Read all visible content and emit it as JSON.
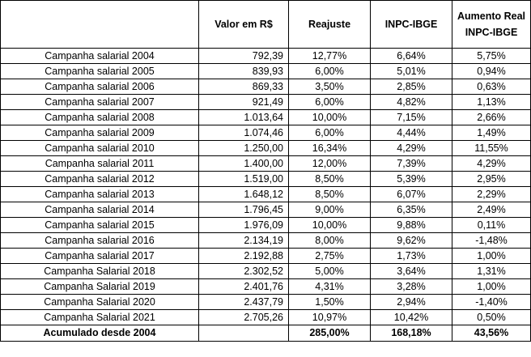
{
  "headers": {
    "label": "",
    "valor": "Valor em R$",
    "reajuste": "Reajuste",
    "inpc": "INPC-IBGE",
    "aumento_line1": "Aumento Real",
    "aumento_line2": "INPC-IBGE"
  },
  "rows": [
    {
      "label": "Campanha salarial 2004",
      "valor": "792,39",
      "reajuste": "12,77%",
      "inpc": "6,64%",
      "aumento": "5,75%"
    },
    {
      "label": "Campanha salarial 2005",
      "valor": "839,93",
      "reajuste": "6,00%",
      "inpc": "5,01%",
      "aumento": "0,94%"
    },
    {
      "label": "Campanha salarial 2006",
      "valor": "869,33",
      "reajuste": "3,50%",
      "inpc": "2,85%",
      "aumento": "0,63%"
    },
    {
      "label": "Campanha salarial 2007",
      "valor": "921,49",
      "reajuste": "6,00%",
      "inpc": "4,82%",
      "aumento": "1,13%"
    },
    {
      "label": "Campanha salarial 2008",
      "valor": "1.013,64",
      "reajuste": "10,00%",
      "inpc": "7,15%",
      "aumento": "2,66%"
    },
    {
      "label": "Campanha salarial 2009",
      "valor": "1.074,46",
      "reajuste": "6,00%",
      "inpc": "4,44%",
      "aumento": "1,49%"
    },
    {
      "label": "Campanha salarial 2010",
      "valor": "1.250,00",
      "reajuste": "16,34%",
      "inpc": "4,29%",
      "aumento": "11,55%"
    },
    {
      "label": "Campanha salarial 2011",
      "valor": "1.400,00",
      "reajuste": "12,00%",
      "inpc": "7,39%",
      "aumento": "4,29%"
    },
    {
      "label": "Campanha salarial 2012",
      "valor": "1.519,00",
      "reajuste": "8,50%",
      "inpc": "5,39%",
      "aumento": "2,95%"
    },
    {
      "label": "Campanha salarial 2013",
      "valor": "1.648,12",
      "reajuste": "8,50%",
      "inpc": "6,07%",
      "aumento": "2,29%"
    },
    {
      "label": "Campanha salarial 2014",
      "valor": "1.796,45",
      "reajuste": "9,00%",
      "inpc": "6,35%",
      "aumento": "2,49%"
    },
    {
      "label": "Campanha salarial 2015",
      "valor": "1.976,09",
      "reajuste": "10,00%",
      "inpc": "9,88%",
      "aumento": "0,11%"
    },
    {
      "label": "Campanha salarial 2016",
      "valor": "2.134,19",
      "reajuste": "8,00%",
      "inpc": "9,62%",
      "aumento": "-1,48%"
    },
    {
      "label": "Campanha salarial 2017",
      "valor": "2.192,88",
      "reajuste": "2,75%",
      "inpc": "1,73%",
      "aumento": "1,00%"
    },
    {
      "label": "Campanha Salarial 2018",
      "valor": "2.302,52",
      "reajuste": "5,00%",
      "inpc": "3,64%",
      "aumento": "1,31%"
    },
    {
      "label": "Campanha Salarial 2019",
      "valor": "2.401,76",
      "reajuste": "4,31%",
      "inpc": "3,28%",
      "aumento": "1,00%"
    },
    {
      "label": "Campanha Salarial 2020",
      "valor": "2.437,79",
      "reajuste": "1,50%",
      "inpc": "2,94%",
      "aumento": "-1,40%"
    },
    {
      "label": "Campanha Salarial 2021",
      "valor": "2.705,26",
      "reajuste": "10,97%",
      "inpc": "10,42%",
      "aumento": "0,50%"
    }
  ],
  "footer": {
    "label": "Acumulado desde 2004",
    "valor": "",
    "reajuste": "285,00%",
    "inpc": "168,18%",
    "aumento": "43,56%"
  }
}
